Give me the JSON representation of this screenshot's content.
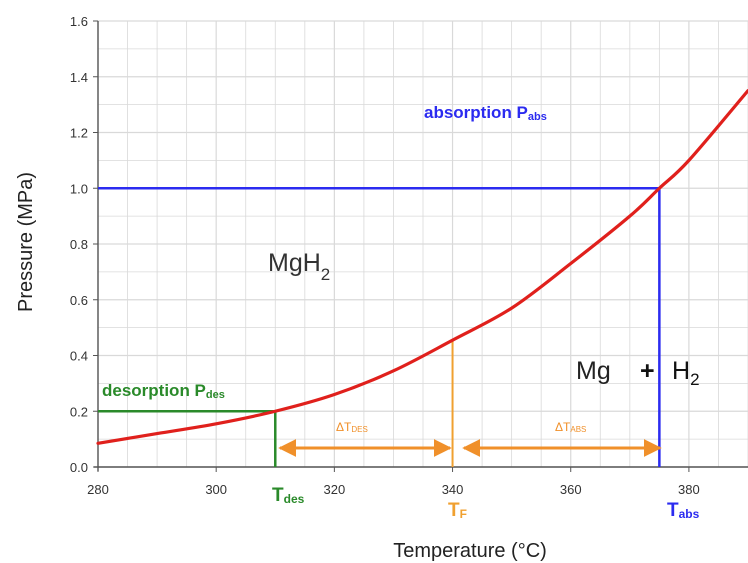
{
  "chart_data": {
    "type": "line",
    "xlabel": "Temperature (°C)",
    "ylabel": "Pressure (MPa)",
    "xlim": [
      280,
      390
    ],
    "ylim": [
      0,
      1.6
    ],
    "x_ticks": [
      "280",
      "300",
      "320",
      "340",
      "360",
      "380"
    ],
    "y_ticks": [
      "0.0",
      "0.2",
      "0.4",
      "0.6",
      "0.8",
      "1.0",
      "1.2",
      "1.4",
      "1.6"
    ],
    "grid": true,
    "series": [
      {
        "color": "#e0201c",
        "x": [
          280,
          290,
          300,
          310,
          320,
          330,
          340,
          350,
          360,
          370,
          375,
          380,
          390
        ],
        "y": [
          0.085,
          0.12,
          0.155,
          0.2,
          0.26,
          0.345,
          0.455,
          0.57,
          0.73,
          0.9,
          1.0,
          1.1,
          1.35
        ]
      }
    ],
    "reference_lines": {
      "absorption": {
        "pressure": 1.0,
        "temperature": 375,
        "color": "#2b2bf0"
      },
      "desorption": {
        "pressure": 0.2,
        "temperature": 310,
        "color": "#2a8a2a"
      },
      "equilibrium": {
        "pressure": 0.455,
        "temperature": 340,
        "color": "#f0a030"
      }
    },
    "annotations": {
      "absorption_label": "absorption P",
      "absorption_sub": "abs",
      "desorption_label": "desorption P",
      "desorption_sub": "des",
      "mgh2": "MgH",
      "mgh2_sub": "2",
      "mg": "Mg",
      "plus": "+",
      "h2": "H",
      "h2_sub": "2",
      "t_des": "T",
      "t_des_sub": "des",
      "t_f": "T",
      "t_f_sub": "F",
      "t_abs": "T",
      "t_abs_sub": "abs",
      "delta_des": "ΔT",
      "delta_des_sub": "DES",
      "delta_abs": "ΔT",
      "delta_abs_sub": "ABS"
    },
    "colors": {
      "curve": "#e0201c",
      "absorption": "#2b2bf0",
      "desorption": "#2a8a2a",
      "equilibrium": "#f0a030",
      "delta_arrows": "#f0902a",
      "grid": "#d9d9d9",
      "axis": "#555555"
    }
  }
}
